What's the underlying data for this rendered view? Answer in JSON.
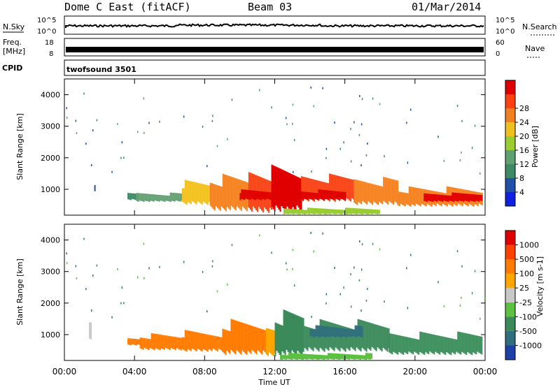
{
  "header": {
    "station": "Dome C East (fitACF)",
    "beam": "Beam 03",
    "date": "01/Mar/2014"
  },
  "noise_panel": {
    "left_label": "N.Sky",
    "right_label": "N.Search",
    "left_ticks": [
      "10^5",
      "10^0"
    ],
    "right_ticks": [
      "10^5",
      "10^0"
    ]
  },
  "freq_panel": {
    "left_label_1": "Freq.",
    "left_label_2": "[MHz]",
    "right_label": "Nave",
    "left_ticks": [
      "18",
      "8"
    ],
    "right_ticks": [
      "60",
      "0"
    ]
  },
  "cpid_panel": {
    "label": "CPID",
    "program": "twofsound 3501"
  },
  "xaxis": {
    "label": "Time UT",
    "ticks": [
      "00:00",
      "04:00",
      "08:00",
      "12:00",
      "16:00",
      "20:00",
      "00:00"
    ]
  },
  "chart_data": [
    {
      "type": "heatmap",
      "title": "",
      "xlabel": "Time UT",
      "ylabel": "Slant Range [km]",
      "xlim": [
        0,
        24
      ],
      "ylim": [
        180,
        4500
      ],
      "yticks": [
        1000,
        2000,
        3000,
        4000
      ],
      "colorbar": {
        "label": "Power [dB]",
        "ticks": [
          "4",
          "8",
          "12",
          "16",
          "20",
          "24",
          "28"
        ],
        "colors": [
          "#1020e0",
          "#2050a8",
          "#3e8a66",
          "#5fa070",
          "#9acd32",
          "#f0c020",
          "#f08020",
          "#ff4010",
          "#e00000"
        ]
      },
      "regions": [
        {
          "t0": 1.7,
          "t1": 1.75,
          "r0": 900,
          "r1": 1250,
          "level": 1
        },
        {
          "t0": 3.6,
          "t1": 4.2,
          "r0": 650,
          "r1": 950,
          "level": 2
        },
        {
          "t0": 4.1,
          "t1": 6.7,
          "r0": 600,
          "r1": 900,
          "level": 3
        },
        {
          "t0": 6.7,
          "t1": 8.3,
          "r0": 500,
          "r1": 1300,
          "level": 5
        },
        {
          "t0": 8.3,
          "t1": 10.5,
          "r0": 300,
          "r1": 1500,
          "level": 6
        },
        {
          "t0": 10.5,
          "t1": 11.8,
          "r0": 250,
          "r1": 1700,
          "level": 7
        },
        {
          "t0": 11.8,
          "t1": 13.5,
          "r0": 250,
          "r1": 1900,
          "level": 8
        },
        {
          "t0": 13.5,
          "t1": 16.5,
          "r0": 600,
          "r1": 1500,
          "level": 7
        },
        {
          "t0": 16.5,
          "t1": 19.0,
          "r0": 500,
          "r1": 1400,
          "level": 6
        },
        {
          "t0": 19.0,
          "t1": 23.8,
          "r0": 450,
          "r1": 1100,
          "level": 6
        },
        {
          "t0": 12.5,
          "t1": 18.0,
          "r0": 200,
          "r1": 420,
          "level": 4
        },
        {
          "t0": 10.0,
          "t1": 16.0,
          "r0": 650,
          "r1": 1000,
          "level": 8
        },
        {
          "t0": 20.5,
          "t1": 23.8,
          "r0": 600,
          "r1": 900,
          "level": 8
        }
      ]
    },
    {
      "type": "heatmap",
      "title": "",
      "xlabel": "Time UT",
      "ylabel": "Slant Range [km]",
      "xlim": [
        0,
        24
      ],
      "ylim": [
        180,
        4500
      ],
      "yticks": [
        1000,
        2000,
        3000,
        4000
      ],
      "colorbar": {
        "label": "Velocity [m s-1]",
        "ticks": [
          "1000",
          "500",
          "100",
          "25",
          "-25",
          "-100",
          "-500",
          "-1000"
        ],
        "colors": [
          "#1c3fa8",
          "#2f6e7e",
          "#3a8a5a",
          "#5cc040",
          "#c8c8c8",
          "#ffa500",
          "#ff7a00",
          "#ff4000",
          "#e00000"
        ]
      },
      "regions": [
        {
          "t0": 1.4,
          "t1": 1.5,
          "r0": 800,
          "r1": 1400,
          "level": 4
        },
        {
          "t0": 3.6,
          "t1": 4.3,
          "r0": 650,
          "r1": 950,
          "level": 6
        },
        {
          "t0": 4.3,
          "t1": 6.7,
          "r0": 500,
          "r1": 1050,
          "level": 6
        },
        {
          "t0": 6.7,
          "t1": 9.0,
          "r0": 450,
          "r1": 1150,
          "level": 6
        },
        {
          "t0": 9.0,
          "t1": 11.5,
          "r0": 350,
          "r1": 1500,
          "level": 6
        },
        {
          "t0": 11.5,
          "t1": 12.0,
          "r0": 300,
          "r1": 1300,
          "level": 5
        },
        {
          "t0": 12.0,
          "t1": 13.6,
          "r0": 300,
          "r1": 1800,
          "level": 2
        },
        {
          "t0": 13.6,
          "t1": 18.5,
          "r0": 450,
          "r1": 1500,
          "level": 2
        },
        {
          "t0": 18.5,
          "t1": 23.8,
          "r0": 350,
          "r1": 1100,
          "level": 2
        },
        {
          "t0": 12.3,
          "t1": 17.5,
          "r0": 200,
          "r1": 420,
          "level": 3
        },
        {
          "t0": 14.0,
          "t1": 17.0,
          "r0": 900,
          "r1": 1300,
          "level": 1
        }
      ]
    }
  ]
}
